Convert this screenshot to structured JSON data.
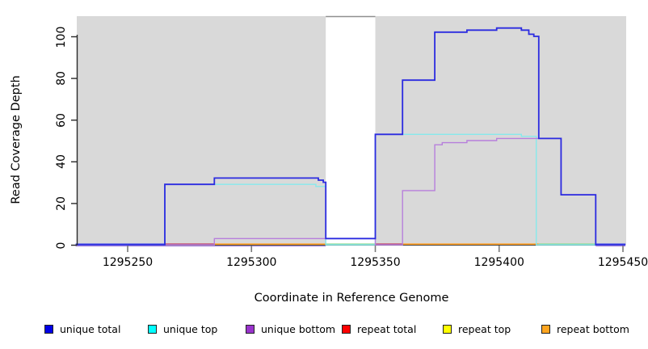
{
  "chart_data": {
    "type": "line",
    "subtype": "step-coverage",
    "title": "",
    "xlabel": "Coordinate in Reference Genome",
    "ylabel": "Read Coverage Depth",
    "xlim": [
      1295229,
      1295451
    ],
    "ylim": [
      0,
      108
    ],
    "grid": false,
    "legend_position": "bottom",
    "x_ticks": [
      {
        "label": "1295250",
        "coord": 1295250
      },
      {
        "label": "1295300",
        "coord": 1295300
      },
      {
        "label": "1295350",
        "coord": 1295350
      },
      {
        "label": "1295400",
        "coord": 1295400
      },
      {
        "label": "1295450",
        "coord": 1295450
      }
    ],
    "y_ticks": [
      {
        "label": "0",
        "value": 0
      },
      {
        "label": "20",
        "value": 20
      },
      {
        "label": "40",
        "value": 40
      },
      {
        "label": "60",
        "value": 60
      },
      {
        "label": "80",
        "value": 80
      },
      {
        "label": "100",
        "value": 100
      }
    ],
    "panel_color": "#d9d9d9",
    "gap_band": {
      "x_start": 1295330,
      "x_end": 1295350,
      "color": "#ffffff"
    },
    "series": [
      {
        "name": "unique total",
        "line_color": "#2b2be0",
        "steps": [
          [
            1295229,
            0
          ],
          [
            1295265,
            29
          ],
          [
            1295285,
            32
          ],
          [
            1295327,
            31
          ],
          [
            1295329,
            30
          ],
          [
            1295330,
            3
          ],
          [
            1295350,
            53
          ],
          [
            1295361,
            79
          ],
          [
            1295374,
            102
          ],
          [
            1295387,
            103
          ],
          [
            1295399,
            104
          ],
          [
            1295409,
            103
          ],
          [
            1295412,
            101
          ],
          [
            1295414,
            100
          ],
          [
            1295416,
            51
          ],
          [
            1295425,
            24
          ],
          [
            1295439,
            0
          ],
          [
            1295451,
            0
          ]
        ]
      },
      {
        "name": "unique top",
        "line_color": "#86e9ec",
        "steps": [
          [
            1295229,
            0
          ],
          [
            1295265,
            29
          ],
          [
            1295326,
            28
          ],
          [
            1295330,
            0
          ],
          [
            1295350,
            53
          ],
          [
            1295409,
            52
          ],
          [
            1295415,
            0
          ],
          [
            1295451,
            0
          ]
        ]
      },
      {
        "name": "unique bottom",
        "line_color": "#b77fdc",
        "steps": [
          [
            1295229,
            0
          ],
          [
            1295285,
            3
          ],
          [
            1295350,
            0
          ],
          [
            1295361,
            26
          ],
          [
            1295374,
            48
          ],
          [
            1295377,
            49
          ],
          [
            1295387,
            50
          ],
          [
            1295399,
            51
          ],
          [
            1295425,
            24
          ],
          [
            1295439,
            0
          ],
          [
            1295451,
            0
          ]
        ]
      },
      {
        "name": "repeat total",
        "line_color": "#c23a5a",
        "steps": [
          [
            1295229,
            0
          ],
          [
            1295451,
            0
          ]
        ]
      },
      {
        "name": "repeat top",
        "line_color": "#f2ef1f",
        "steps": [
          [
            1295229,
            0
          ],
          [
            1295451,
            0
          ]
        ]
      },
      {
        "name": "repeat bottom",
        "line_color": "#ff9d20",
        "steps": [
          [
            1295229,
            0
          ],
          [
            1295451,
            0
          ]
        ]
      }
    ],
    "baseline_segments": [
      {
        "x1": 1295229,
        "x2": 1295265,
        "color": "#4a52e8",
        "meaning": "unique total at 0"
      },
      {
        "x1": 1295265,
        "x2": 1295285,
        "color": "#c23a5a",
        "meaning": "repeat total at 0"
      },
      {
        "x1": 1295285,
        "x2": 1295330,
        "color": "#ff9d20",
        "meaning": "repeat bottom at 0"
      },
      {
        "x1": 1295330,
        "x2": 1295350,
        "color": "#8fd98f",
        "meaning": "overlap at 0"
      },
      {
        "x1": 1295350,
        "x2": 1295361,
        "color": "#c23a5a",
        "meaning": "repeat total at 0"
      },
      {
        "x1": 1295361,
        "x2": 1295416,
        "color": "#ff9d20",
        "meaning": "repeat bottom at 0"
      },
      {
        "x1": 1295416,
        "x2": 1295439,
        "color": "#8fd98f",
        "meaning": "overlap at 0"
      },
      {
        "x1": 1295439,
        "x2": 1295451,
        "color": "#4a52e8",
        "meaning": "unique total at 0"
      }
    ],
    "underline_fringe": {
      "color": "#b497e0",
      "segments": [
        [
          1295229,
          1295330
        ],
        [
          1295439,
          1295451
        ]
      ]
    },
    "legend_items": [
      {
        "label": "unique total",
        "swatch_color": "#0000e6"
      },
      {
        "label": "unique top",
        "swatch_color": "#00ffff"
      },
      {
        "label": "unique bottom",
        "swatch_color": "#9933cc"
      },
      {
        "label": "repeat total",
        "swatch_color": "#ff0000"
      },
      {
        "label": "repeat top",
        "swatch_color": "#ffff00"
      },
      {
        "label": "repeat bottom",
        "swatch_color": "#ffa520"
      }
    ]
  }
}
